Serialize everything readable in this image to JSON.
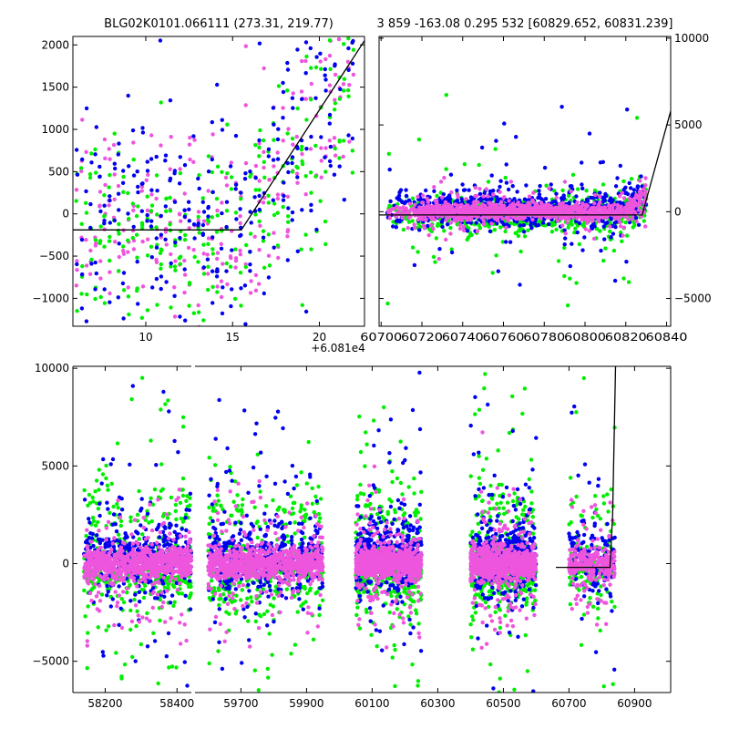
{
  "colors": {
    "blue": "#0000ee",
    "green": "#00ee00",
    "magenta": "#ee55dd",
    "model_line": "#000000",
    "background": "#ffffff"
  },
  "chart_data": [
    {
      "id": "top-left",
      "type": "scatter",
      "title": "BLG02K0101.066111 (273.31, 219.77)",
      "xlim": [
        5.8,
        22.6
      ],
      "ylim": [
        -1330,
        2100
      ],
      "x_ticks": [
        10,
        15,
        20
      ],
      "y_ticks": [
        -1000,
        -500,
        0,
        500,
        1000,
        1500,
        2000
      ],
      "x_offset_label": "+6.081e4",
      "series": [
        {
          "name": "blue",
          "color": "blue"
        },
        {
          "name": "green",
          "color": "green"
        },
        {
          "name": "magenta",
          "color": "magenta"
        }
      ],
      "model_line": {
        "x": [
          5.8,
          15.5,
          22.6
        ],
        "y": [
          -190,
          -190,
          2050
        ]
      }
    },
    {
      "id": "top-right",
      "type": "scatter",
      "title": "3 859 -163.08 0.295 532 [60829.652, 60831.239]",
      "xlim": [
        60699,
        60842
      ],
      "ylim": [
        -6600,
        10100
      ],
      "x_ticks": [
        60700,
        60720,
        60740,
        60760,
        60780,
        60800,
        60820,
        60840
      ],
      "y_ticks": [
        -5000,
        0,
        5000,
        10000
      ],
      "y_axis_side": "right",
      "series": [
        {
          "name": "blue",
          "color": "blue"
        },
        {
          "name": "green",
          "color": "green"
        },
        {
          "name": "magenta",
          "color": "magenta"
        }
      ],
      "model_line": {
        "x": [
          60699,
          60828,
          60842
        ],
        "y": [
          -190,
          -190,
          5800
        ]
      }
    },
    {
      "id": "bottom",
      "type": "scatter",
      "xlim": [
        58110,
        61010
      ],
      "ylim": [
        -6600,
        10100
      ],
      "x_ticks": [
        58200,
        58400,
        59700,
        59900,
        60100,
        60300,
        60500,
        60700,
        60900
      ],
      "y_ticks": [
        -5000,
        0,
        5000,
        10000
      ],
      "broken_x_axis": true,
      "seasons": [
        [
          58140,
          58450
        ],
        [
          59600,
          59950
        ],
        [
          60050,
          60250
        ],
        [
          60400,
          60600
        ],
        [
          60700,
          60840
        ]
      ],
      "series": [
        {
          "name": "blue",
          "color": "blue"
        },
        {
          "name": "green",
          "color": "green"
        },
        {
          "name": "magenta",
          "color": "magenta"
        }
      ],
      "model_line": {
        "x": [
          60660,
          60825,
          60833,
          60842
        ],
        "y": [
          -190,
          -190,
          2500,
          10100
        ]
      }
    }
  ]
}
